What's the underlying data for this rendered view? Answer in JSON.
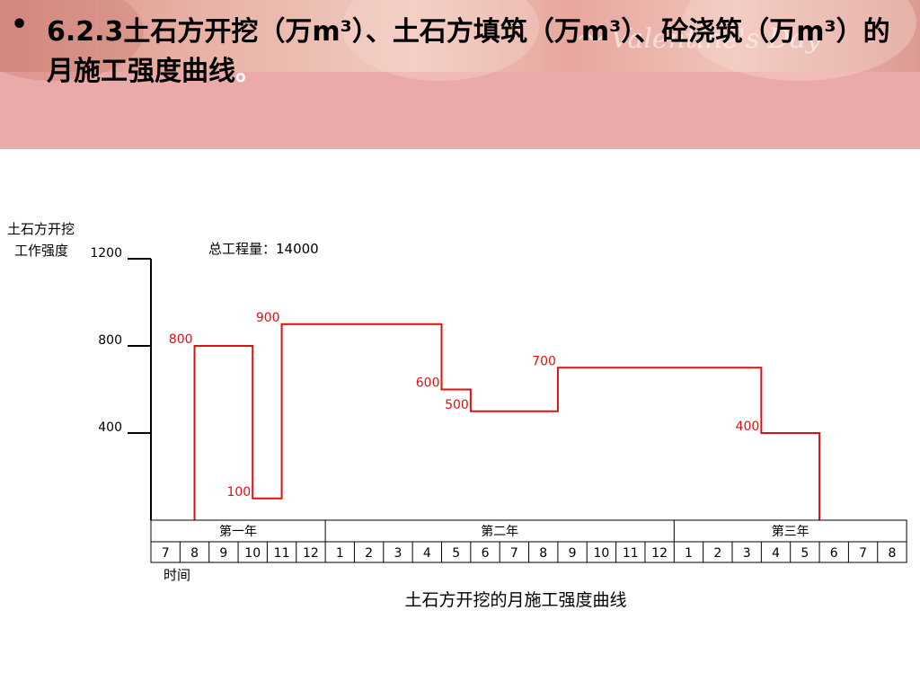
{
  "slide": {
    "bullet": "•",
    "title_main": "6.2.3土石方开挖（万m³）、土石方填筑（万m³）、砼浇筑（万m³）的月施工强度曲线",
    "title_end": "。"
  },
  "colors": {
    "header_bg": "#ebaaaa",
    "line": "#dd1111",
    "axis": "#000000"
  },
  "chart_data": {
    "type": "line",
    "step": true,
    "title": "土石方开挖的月施工强度曲线",
    "ylabel_line1": "土石方开挖",
    "ylabel_line2": "工作强度",
    "xlabel": "时间",
    "annotation": "总工程量：14000",
    "y_ticks": [
      {
        "value": 400,
        "label": "400"
      },
      {
        "value": 800,
        "label": "800"
      },
      {
        "value": 1200,
        "label": "1200"
      }
    ],
    "years": [
      {
        "label": "第一年",
        "months": [
          "7",
          "8",
          "9",
          "10",
          "11",
          "12"
        ]
      },
      {
        "label": "第二年",
        "months": [
          "1",
          "2",
          "3",
          "4",
          "5",
          "6",
          "7",
          "8",
          "9",
          "10",
          "11",
          "12"
        ]
      },
      {
        "label": "第三年",
        "months": [
          "1",
          "2",
          "3",
          "4",
          "5",
          "6",
          "7",
          "8"
        ]
      }
    ],
    "series": [
      {
        "segments": [
          {
            "start": 1.5,
            "end": 3.5,
            "value": 800
          },
          {
            "start": 3.5,
            "end": 4.5,
            "value": 100
          },
          {
            "start": 4.5,
            "end": 10.0,
            "value": 900
          },
          {
            "start": 10.0,
            "end": 11.0,
            "value": 600
          },
          {
            "start": 11.0,
            "end": 14.0,
            "value": 500
          },
          {
            "start": 14.0,
            "end": 21.0,
            "value": 700
          },
          {
            "start": 21.0,
            "end": 23.0,
            "value": 400
          }
        ]
      }
    ],
    "data_labels": [
      {
        "text": "800",
        "x": 1.5,
        "value": 800,
        "side": "left"
      },
      {
        "text": "900",
        "x": 4.5,
        "value": 900,
        "side": "left"
      },
      {
        "text": "100",
        "x": 3.5,
        "value": 100,
        "side": "left"
      },
      {
        "text": "600",
        "x": 10.0,
        "value": 600,
        "side": "left"
      },
      {
        "text": "500",
        "x": 11.0,
        "value": 500,
        "side": "left"
      },
      {
        "text": "700",
        "x": 14.0,
        "value": 700,
        "side": "left"
      },
      {
        "text": "400",
        "x": 21.0,
        "value": 400,
        "side": "left"
      }
    ],
    "ylim": [
      0,
      1200
    ],
    "grid": false
  }
}
